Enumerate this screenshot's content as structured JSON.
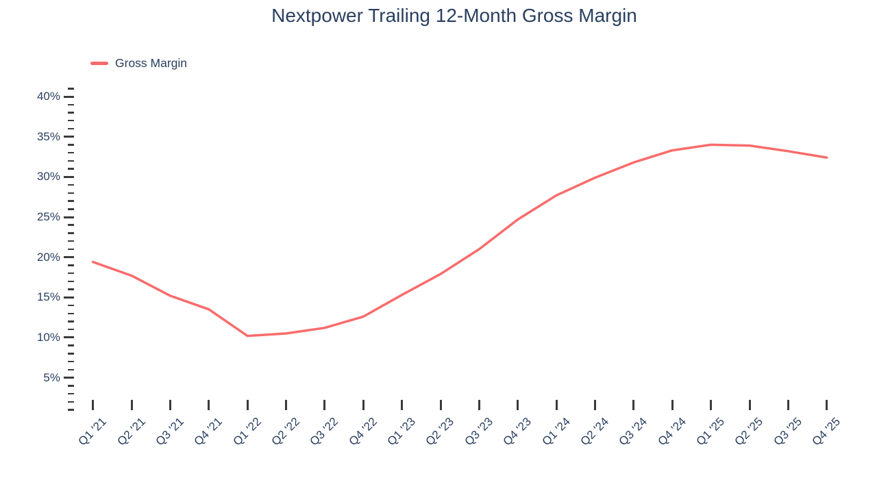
{
  "page": {
    "background_color": "#ffffff",
    "text_color": "#2a3f5f",
    "tick_mark_color": "#3b3b3b"
  },
  "legend": {
    "label": "Gross Margin"
  },
  "chart_data": {
    "type": "line",
    "title": "Nextpower Trailing 12-Month Gross Margin",
    "xlabel": "",
    "ylabel": "",
    "categories": [
      "Q1 '21",
      "Q2 '21",
      "Q3 '21",
      "Q4 '21",
      "Q1 '22",
      "Q2 '22",
      "Q3 '22",
      "Q4 '22",
      "Q1 '23",
      "Q2 '23",
      "Q3 '23",
      "Q4 '23",
      "Q1 '24",
      "Q2 '24",
      "Q3 '24",
      "Q4 '24",
      "Q1 '25",
      "Q2 '25",
      "Q3 '25",
      "Q4 '25"
    ],
    "series": [
      {
        "name": "Gross Margin",
        "color": "#F86C6B",
        "values": [
          19.4,
          17.7,
          15.2,
          13.5,
          10.2,
          10.5,
          11.2,
          12.6,
          15.3,
          17.9,
          21.0,
          24.7,
          27.7,
          29.9,
          31.8,
          33.3,
          34.0,
          33.9,
          33.2,
          32.4
        ]
      }
    ],
    "ylim": [
      0,
      42
    ],
    "y_major_ticks": [
      40,
      35,
      30,
      25,
      20,
      15,
      10,
      5
    ],
    "y_tick_suffix": "%",
    "y_minor_step": 1,
    "grid": false,
    "axis_lines": false,
    "legend_position": "top-left",
    "x_label_rotation_deg": -45
  }
}
